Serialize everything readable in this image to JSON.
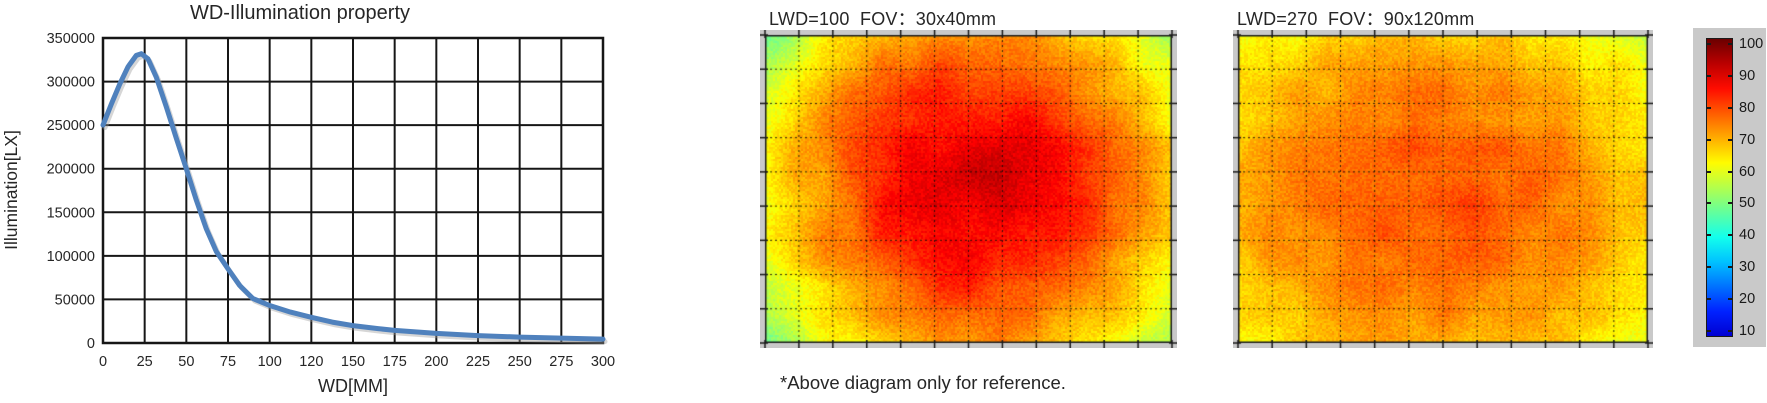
{
  "figure": {
    "background": "#ffffff",
    "text_color": "#262626"
  },
  "line_chart": {
    "title": "WD-Illumination property",
    "x_axis_label": "WD[MM]",
    "y_axis_label": "Illumination[LX]",
    "x_tick_labels": [
      "0",
      "25",
      "50",
      "75",
      "100",
      "120",
      "150",
      "175",
      "200",
      "225",
      "250",
      "275",
      "300"
    ],
    "y_tick_labels": [
      "350000",
      "300000",
      "250000",
      "200000",
      "150000",
      "100000",
      "50000",
      "0"
    ],
    "line_color": "#4f81bd",
    "grid_color": "#161616"
  },
  "heatmap1": {
    "title": "LWD=100  FOV：30x40mm"
  },
  "heatmap2": {
    "title": "LWD=270  FOV：90x120mm"
  },
  "colorbar": {
    "tick_labels": [
      "100",
      "90",
      "80",
      "70",
      "60",
      "50",
      "40",
      "30",
      "20",
      "10"
    ],
    "panel_color": "#c9c9c9",
    "colormap": "jet"
  },
  "footnote": "*Above diagram only for reference.",
  "chart_data": [
    {
      "type": "line",
      "title": "WD-Illumination property",
      "xlabel": "WD[MM]",
      "ylabel": "Illumination[LX]",
      "x_ticks": [
        0,
        25,
        50,
        75,
        100,
        120,
        150,
        175,
        200,
        225,
        250,
        275,
        300
      ],
      "ylim": [
        0,
        350000
      ],
      "grid": true,
      "legend": "none",
      "series": [
        {
          "name": "Illumination",
          "x": [
            0,
            5,
            10,
            15,
            20,
            23,
            27,
            32,
            38,
            44,
            50,
            56,
            62,
            68,
            75,
            82,
            90,
            100,
            110,
            120,
            135,
            150,
            165,
            175,
            200,
            225,
            250,
            275,
            300
          ],
          "y": [
            250000,
            274000,
            297000,
            317000,
            330000,
            332000,
            326000,
            305000,
            271000,
            235000,
            200000,
            164000,
            131000,
            105000,
            85000,
            66000,
            51000,
            43000,
            35500,
            29500,
            24000,
            20000,
            16500,
            14500,
            11000,
            8500,
            6800,
            5600,
            4500
          ]
        }
      ]
    },
    {
      "type": "heatmap",
      "title": "LWD=100  FOV：30x40mm",
      "colormap": "jet",
      "scale_range": [
        10,
        100
      ],
      "center_value": 91,
      "mid_edge_value": 68,
      "corner_value": 53,
      "grid": {
        "columns": 12,
        "rows": 9,
        "style": "dotted"
      }
    },
    {
      "type": "heatmap",
      "title": "LWD=270  FOV：90x120mm",
      "colormap": "jet",
      "scale_range": [
        10,
        100
      ],
      "center_value": 80,
      "mid_edge_value": 69,
      "corner_value": 60,
      "grid": {
        "columns": 12,
        "rows": 9,
        "style": "dotted"
      }
    }
  ]
}
